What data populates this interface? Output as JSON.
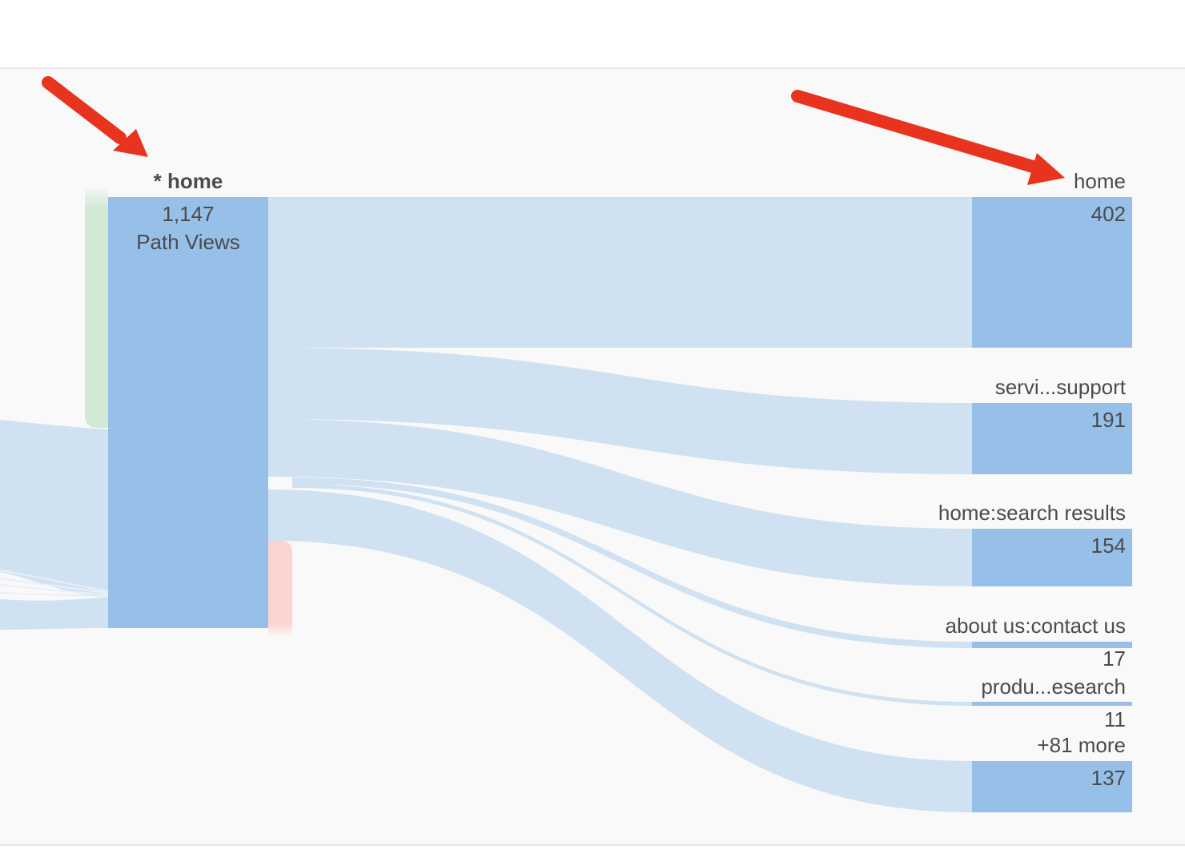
{
  "flow_diagram": {
    "focus_node": {
      "title": "* home",
      "value": "1,147",
      "metric": "Path Views"
    },
    "next_nodes": [
      {
        "label": "home",
        "value": "402"
      },
      {
        "label": "servi...support",
        "value": "191"
      },
      {
        "label": "home:search results",
        "value": "154"
      },
      {
        "label": "about us:contact us",
        "value": "17"
      },
      {
        "label": "produ...esearch",
        "value": "11"
      },
      {
        "label": "+81 more",
        "value": "137"
      }
    ]
  },
  "colors": {
    "node": "#97c0e9",
    "link": "#d0e2f2",
    "entry_marker": "#d3e9d4",
    "exit_marker": "#fbd3d0",
    "annotation_arrow": "#e8331f"
  }
}
